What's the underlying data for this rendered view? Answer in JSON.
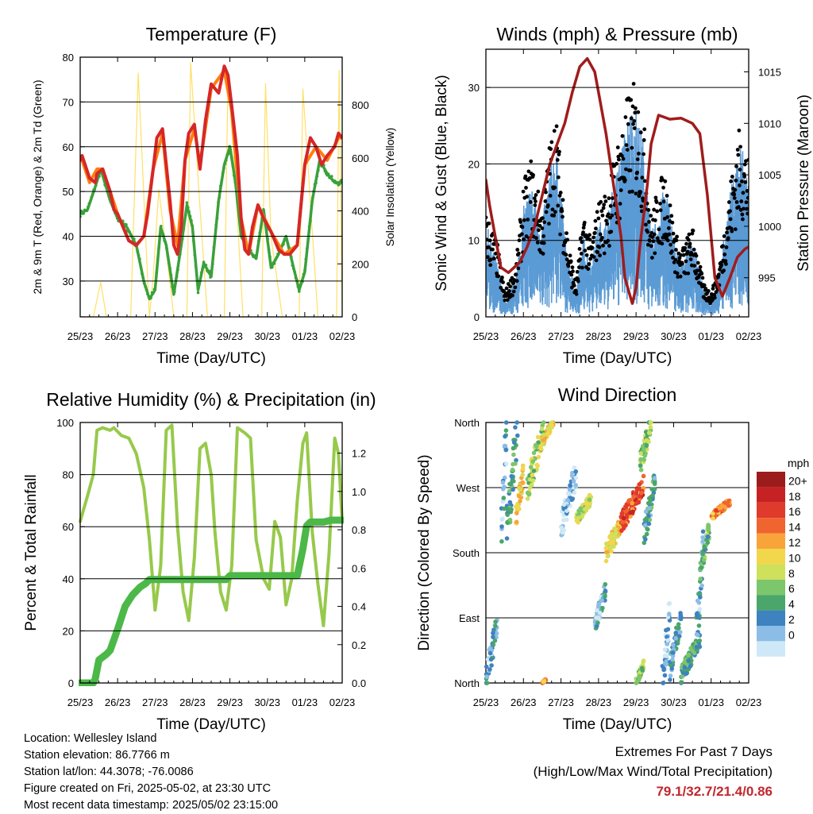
{
  "chart_data": [
    {
      "type": "line",
      "title": "Temperature (F)",
      "xlabel": "Time (Day/UTC)",
      "ylabel": "2m & 9m T (Red, Orange) & 2m Td (Green)",
      "ylabel_right": "Solar Insolation (Yellow)",
      "xticks": [
        "25/23",
        "26/23",
        "27/23",
        "28/23",
        "29/23",
        "30/23",
        "01/23",
        "02/23"
      ],
      "ylim": [
        22,
        80
      ],
      "yticks": [
        30,
        40,
        50,
        60,
        70,
        80
      ],
      "ylim_right": [
        0,
        980
      ],
      "yticks_right": [
        0,
        200,
        400,
        600,
        800
      ],
      "grid": true,
      "series": [
        {
          "color": "#d62728",
          "x": [
            0,
            0.05,
            0.25,
            0.4,
            0.45,
            0.6,
            0.8,
            0.9,
            1,
            1.3,
            1.5,
            1.7,
            1.8,
            1.95,
            2.05,
            2.2,
            2.4,
            2.5,
            2.6,
            2.7,
            2.8,
            2.9,
            3.05,
            3.2,
            3.35,
            3.5,
            3.7,
            3.85,
            3.95,
            4.05,
            4.2,
            4.3,
            4.4,
            4.5,
            4.6,
            4.75,
            4.9,
            5.1,
            5.3,
            5.45,
            5.6,
            5.8,
            5.9,
            6.0,
            6.15,
            6.3,
            6.45,
            6.6,
            6.8,
            6.9,
            7.0
          ],
          "y": [
            57,
            58,
            53,
            52,
            54,
            55,
            50,
            46,
            45,
            39,
            38,
            40,
            45,
            55,
            62,
            64,
            48,
            38,
            36,
            42,
            57,
            63,
            65,
            55,
            66,
            74,
            72,
            78,
            76,
            69,
            58,
            44,
            37,
            36,
            42,
            47,
            44,
            41,
            37,
            36,
            36,
            38,
            47,
            56,
            62,
            60,
            56,
            58,
            60,
            63,
            62
          ]
        },
        {
          "color": "#ff7f0e",
          "x": [
            0,
            0.05,
            0.25,
            0.45,
            0.6,
            0.8,
            1,
            1.3,
            1.5,
            1.7,
            1.95,
            2.2,
            2.4,
            2.6,
            2.8,
            3.05,
            3.2,
            3.5,
            3.85,
            4.05,
            4.3,
            4.5,
            4.75,
            5.1,
            5.45,
            5.8,
            6.0,
            6.3,
            6.6,
            6.9,
            7.0
          ],
          "y": [
            57,
            57,
            52,
            55,
            55,
            50,
            45,
            39,
            38,
            40,
            55,
            63,
            46,
            38,
            57,
            64,
            56,
            73,
            77,
            68,
            44,
            36,
            47,
            41,
            36,
            38,
            56,
            60,
            57,
            62,
            62
          ]
        },
        {
          "color": "#3aa13a",
          "x": [
            0,
            0.2,
            0.4,
            0.55,
            0.8,
            1,
            1.25,
            1.5,
            1.7,
            1.85,
            2.0,
            2.15,
            2.3,
            2.5,
            2.7,
            2.85,
            3.0,
            3.15,
            3.3,
            3.5,
            3.7,
            3.85,
            4.0,
            4.15,
            4.3,
            4.5,
            4.7,
            4.9,
            5.1,
            5.3,
            5.5,
            5.7,
            5.85,
            6.0,
            6.2,
            6.4,
            6.6,
            6.8,
            7.0
          ],
          "y": [
            45,
            46,
            51,
            55,
            48,
            44,
            42,
            38,
            30,
            26,
            28,
            42,
            38,
            27,
            38,
            47,
            42,
            28,
            34,
            31,
            48,
            56,
            60,
            52,
            40,
            37,
            35,
            46,
            33,
            36,
            40,
            33,
            28,
            32,
            48,
            57,
            54,
            52,
            52
          ]
        },
        {
          "color": "#ffe066",
          "axis": "right",
          "x": [
            0,
            0.35,
            0.55,
            0.7,
            1.35,
            1.55,
            1.75,
            1.85,
            1.95,
            2.1,
            2.3,
            2.5,
            2.85,
            2.95,
            3.15,
            3.4,
            3.85,
            3.95,
            4.1,
            4.35,
            4.85,
            4.95,
            5.1,
            5.4,
            5.85,
            5.95,
            6.1,
            6.35,
            6.85,
            6.92,
            7.0
          ],
          "y": [
            0,
            0,
            130,
            0,
            0,
            920,
            300,
            0,
            150,
            480,
            250,
            0,
            0,
            960,
            520,
            0,
            0,
            900,
            620,
            0,
            0,
            880,
            300,
            0,
            0,
            860,
            540,
            0,
            0,
            930,
            0
          ]
        }
      ]
    },
    {
      "type": "scatter",
      "title": "Winds (mph) & Pressure (mb)",
      "xlabel": "Time (Day/UTC)",
      "ylabel": "Sonic Wind & Gust (Blue, Black)",
      "ylabel_right": "Station Pressure (Maroon)",
      "xticks": [
        "25/23",
        "26/23",
        "27/23",
        "28/23",
        "29/23",
        "30/23",
        "01/23",
        "02/23"
      ],
      "ylim": [
        0,
        35
      ],
      "yticks": [
        0,
        10,
        20,
        30
      ],
      "ylim_right": [
        991.2,
        1017.2
      ],
      "yticks_right": [
        995,
        1000,
        1005,
        1010,
        1015
      ],
      "grid": true,
      "wind_envelope": {
        "x": [
          0,
          0.3,
          0.5,
          0.8,
          1.0,
          1.2,
          1.5,
          1.7,
          1.85,
          2.0,
          2.2,
          2.4,
          2.6,
          2.8,
          3.0,
          3.2,
          3.5,
          3.8,
          3.95,
          4.2,
          4.4,
          4.6,
          4.8,
          5.0,
          5.2,
          5.5,
          5.8,
          6.0,
          6.2,
          6.5,
          6.7,
          6.8,
          6.95,
          7.0
        ],
        "gust": [
          13,
          9,
          3,
          6,
          16,
          19,
          13,
          21,
          25,
          18,
          9,
          4,
          13,
          9,
          14,
          15,
          21,
          27,
          28,
          24,
          12,
          16,
          18,
          11,
          8,
          11,
          4,
          3,
          6,
          16,
          22,
          23,
          20,
          19
        ],
        "sustained": [
          7,
          4,
          1,
          3,
          8,
          10,
          7,
          11,
          13,
          9,
          4,
          2,
          6,
          4,
          7,
          7,
          11,
          15,
          16,
          13,
          6,
          8,
          10,
          6,
          4,
          6,
          2,
          1,
          3,
          9,
          12,
          13,
          11,
          10
        ]
      },
      "series": [
        {
          "name": "Pressure",
          "color": "#a01c1c",
          "axis": "right",
          "x": [
            0,
            0.1,
            0.4,
            0.6,
            0.9,
            1.1,
            1.3,
            1.5,
            1.7,
            1.9,
            2.1,
            2.3,
            2.5,
            2.7,
            2.9,
            3.0,
            3.2,
            3.4,
            3.6,
            3.7,
            3.9,
            4.0,
            4.1,
            4.3,
            4.4,
            4.6,
            4.9,
            5.2,
            5.5,
            5.7,
            5.9,
            6.0,
            6.1,
            6.3,
            6.5,
            6.7,
            6.9,
            7.0
          ],
          "y": [
            1004.5,
            1002,
            996,
            995.5,
            996.5,
            998,
            1000,
            1003,
            1006,
            1008,
            1010,
            1013,
            1015.5,
            1016.3,
            1015,
            1013,
            1009,
            1004,
            999,
            995,
            992.5,
            994,
            998,
            1004,
            1008,
            1010.8,
            1010.4,
            1010.5,
            1010,
            1009,
            1003,
            999,
            995,
            993.2,
            995,
            997,
            997.8,
            998
          ]
        }
      ]
    },
    {
      "type": "line",
      "title": "Relative Humidity (%) & Precipitation (in)",
      "xlabel": "Time (Day/UTC)",
      "ylabel": "Percent & Total Rainfall",
      "xticks": [
        "25/23",
        "26/23",
        "27/23",
        "28/23",
        "29/23",
        "30/23",
        "01/23",
        "02/23"
      ],
      "ylim": [
        0,
        100
      ],
      "yticks": [
        0,
        20,
        40,
        60,
        80,
        100
      ],
      "ylim_right": [
        0,
        1.36
      ],
      "yticks_right": [
        0.0,
        0.2,
        0.4,
        0.6,
        0.8,
        1.0,
        1.2
      ],
      "grid": true,
      "series": [
        {
          "color": "#97c94b",
          "x": [
            0,
            0.2,
            0.35,
            0.45,
            0.6,
            0.8,
            0.9,
            1.1,
            1.3,
            1.5,
            1.7,
            1.85,
            2.0,
            2.15,
            2.3,
            2.45,
            2.6,
            2.75,
            2.9,
            3.05,
            3.2,
            3.35,
            3.5,
            3.6,
            3.75,
            3.9,
            4.05,
            4.2,
            4.4,
            4.55,
            4.7,
            4.9,
            5.05,
            5.2,
            5.35,
            5.5,
            5.65,
            5.8,
            5.95,
            6.05,
            6.2,
            6.35,
            6.5,
            6.65,
            6.8,
            6.9,
            7.0
          ],
          "y": [
            62,
            72,
            80,
            97,
            98,
            97,
            98,
            95,
            94,
            88,
            75,
            55,
            28,
            45,
            97,
            99,
            60,
            35,
            24,
            48,
            90,
            92,
            80,
            58,
            35,
            28,
            45,
            98,
            96,
            94,
            55,
            40,
            36,
            62,
            56,
            30,
            40,
            70,
            92,
            96,
            58,
            38,
            22,
            50,
            94,
            88,
            62
          ]
        },
        {
          "color": "#4cb848",
          "axis": "right",
          "x": [
            0,
            0.35,
            0.4,
            0.5,
            0.7,
            0.8,
            1.0,
            1.2,
            1.4,
            1.6,
            1.75,
            1.85,
            2.0,
            2.1,
            2.3,
            2.6,
            2.9,
            3.0,
            3.3,
            3.6,
            3.9,
            4.0,
            4.2,
            4.5,
            4.9,
            5.2,
            5.5,
            5.8,
            5.95,
            6.05,
            6.15,
            6.3,
            6.5,
            6.7,
            7.0
          ],
          "y": [
            0,
            0,
            0.02,
            0.12,
            0.15,
            0.17,
            0.28,
            0.4,
            0.46,
            0.5,
            0.52,
            0.54,
            0.54,
            0.54,
            0.54,
            0.54,
            0.54,
            0.54,
            0.54,
            0.54,
            0.54,
            0.56,
            0.56,
            0.56,
            0.56,
            0.56,
            0.56,
            0.56,
            0.7,
            0.82,
            0.84,
            0.84,
            0.84,
            0.85,
            0.85
          ]
        }
      ]
    },
    {
      "type": "scatter",
      "title": "Wind Direction",
      "xlabel": "Time (Day/UTC)",
      "ylabel": "Direction (Colored By Speed)",
      "xticks": [
        "25/23",
        "26/23",
        "27/23",
        "28/23",
        "29/23",
        "30/23",
        "01/23",
        "02/23"
      ],
      "ylim": [
        0,
        360
      ],
      "yticks": [
        "North",
        "East",
        "South",
        "West",
        "North"
      ],
      "grid": true,
      "legend": {
        "title": "mph",
        "placement": "right",
        "labels": [
          "20+",
          "18",
          "16",
          "14",
          "12",
          "10",
          "8",
          "6",
          "4",
          "2",
          "0"
        ],
        "colors": [
          "#9c1c1c",
          "#c62224",
          "#e03a2c",
          "#f06430",
          "#f9a43a",
          "#f2d64c",
          "#cfe05a",
          "#7cc66b",
          "#4aa66a",
          "#3f82c0",
          "#8cbde6",
          "#cfe8f7"
        ]
      },
      "clusters": [
        {
          "x0": 0.0,
          "x1": 0.3,
          "y0": 5,
          "y1": 80,
          "speed": 3
        },
        {
          "x0": 0.4,
          "x1": 0.55,
          "y0": 180,
          "y1": 360,
          "speed": 3
        },
        {
          "x0": 0.55,
          "x1": 0.85,
          "y0": 210,
          "y1": 355,
          "speed": 6
        },
        {
          "x0": 0.8,
          "x1": 1.0,
          "y0": 230,
          "y1": 290,
          "speed": 12
        },
        {
          "x0": 1.1,
          "x1": 1.55,
          "y0": 270,
          "y1": 350,
          "speed": 9
        },
        {
          "x0": 1.5,
          "x1": 1.8,
          "y0": 335,
          "y1": 360,
          "speed": 12
        },
        {
          "x0": 1.5,
          "x1": 1.6,
          "y0": 0,
          "y1": 5,
          "speed": 15
        },
        {
          "x0": 2.0,
          "x1": 2.4,
          "y0": 215,
          "y1": 290,
          "speed": 2
        },
        {
          "x0": 2.4,
          "x1": 2.8,
          "y0": 225,
          "y1": 255,
          "speed": 10
        },
        {
          "x0": 2.9,
          "x1": 3.2,
          "y0": 80,
          "y1": 130,
          "speed": 3
        },
        {
          "x0": 3.2,
          "x1": 3.7,
          "y0": 180,
          "y1": 230,
          "speed": 12
        },
        {
          "x0": 3.6,
          "x1": 4.2,
          "y0": 220,
          "y1": 275,
          "speed": 17
        },
        {
          "x0": 4.1,
          "x1": 4.4,
          "y0": 300,
          "y1": 360,
          "speed": 8
        },
        {
          "x0": 4.2,
          "x1": 4.5,
          "y0": 200,
          "y1": 280,
          "speed": 5
        },
        {
          "x0": 4.0,
          "x1": 4.2,
          "y0": 0,
          "y1": 25,
          "speed": 8
        },
        {
          "x0": 4.7,
          "x1": 4.9,
          "y0": 0,
          "y1": 100,
          "speed": 2
        },
        {
          "x0": 4.9,
          "x1": 5.2,
          "y0": 20,
          "y1": 90,
          "speed": 4
        },
        {
          "x0": 5.2,
          "x1": 5.7,
          "y0": 10,
          "y1": 60,
          "speed": 6
        },
        {
          "x0": 5.6,
          "x1": 5.8,
          "y0": 50,
          "y1": 200,
          "speed": 3
        },
        {
          "x0": 5.7,
          "x1": 5.95,
          "y0": 150,
          "y1": 210,
          "speed": 7
        },
        {
          "x0": 6.0,
          "x1": 6.5,
          "y0": 230,
          "y1": 250,
          "speed": 15
        }
      ]
    }
  ],
  "info": {
    "location": "Location: Wellesley Island",
    "elevation": "Station elevation: 86.7766 m",
    "latlon": "Station lat/lon: 44.3078; -76.0086",
    "created": "Figure created on Fri, 2025-05-02, at 23:30 UTC",
    "recent": "Most recent data timestamp: 2025/05/02 23:15:00"
  },
  "extremes": {
    "title": "Extremes For Past 7 Days",
    "subtitle": "(High/Low/Max Wind/Total Precipitation)",
    "values": "79.1/32.7/21.4/0.86",
    "color": "#c0272d"
  }
}
